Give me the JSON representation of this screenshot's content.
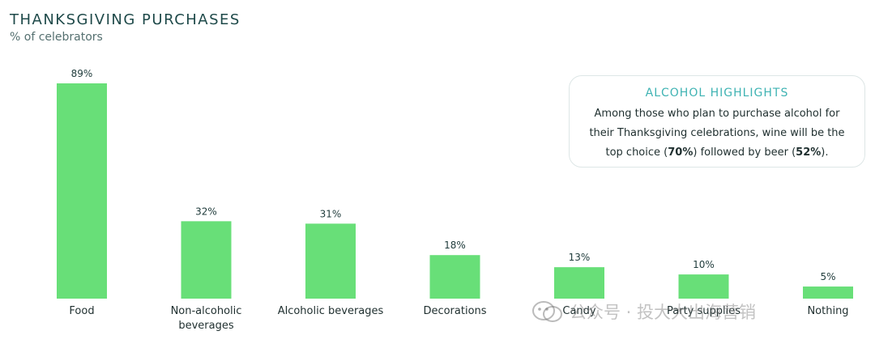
{
  "header": {
    "title": "THANKSGIVING PURCHASES",
    "subtitle": "% of celebrators"
  },
  "colors": {
    "bar": "#68df78",
    "accent": "#3fb3b3"
  },
  "callout": {
    "title": "ALCOHOL HIGHLIGHTS",
    "text_1": "Among those who plan to purchase alcohol for their Thanksgiving celebrations, wine will be the top choice (",
    "wine_pct": "70%",
    "text_2": ") followed by beer (",
    "beer_pct": "52%",
    "text_3": ")."
  },
  "watermark": {
    "text": "公众号 · 投大大出海营销",
    "icon": "wechat-icon"
  },
  "chart_data": {
    "type": "bar",
    "categories": [
      "Food",
      "Non-alcoholic beverages",
      "Alcoholic beverages",
      "Decorations",
      "Candy",
      "Party supplies",
      "Nothing"
    ],
    "category_lines": [
      [
        "Food"
      ],
      [
        "Non-alcoholic",
        "beverages"
      ],
      [
        "Alcoholic beverages"
      ],
      [
        "Decorations"
      ],
      [
        "Candy"
      ],
      [
        "Party supplies"
      ],
      [
        "Nothing"
      ]
    ],
    "values": [
      89,
      32,
      31,
      18,
      13,
      10,
      5
    ],
    "value_labels": [
      "89%",
      "32%",
      "31%",
      "18%",
      "13%",
      "10%",
      "5%"
    ],
    "title": "THANKSGIVING PURCHASES",
    "subtitle": "% of celebrators",
    "xlabel": "",
    "ylabel": "",
    "ylim": [
      0,
      89
    ],
    "grid": false
  }
}
